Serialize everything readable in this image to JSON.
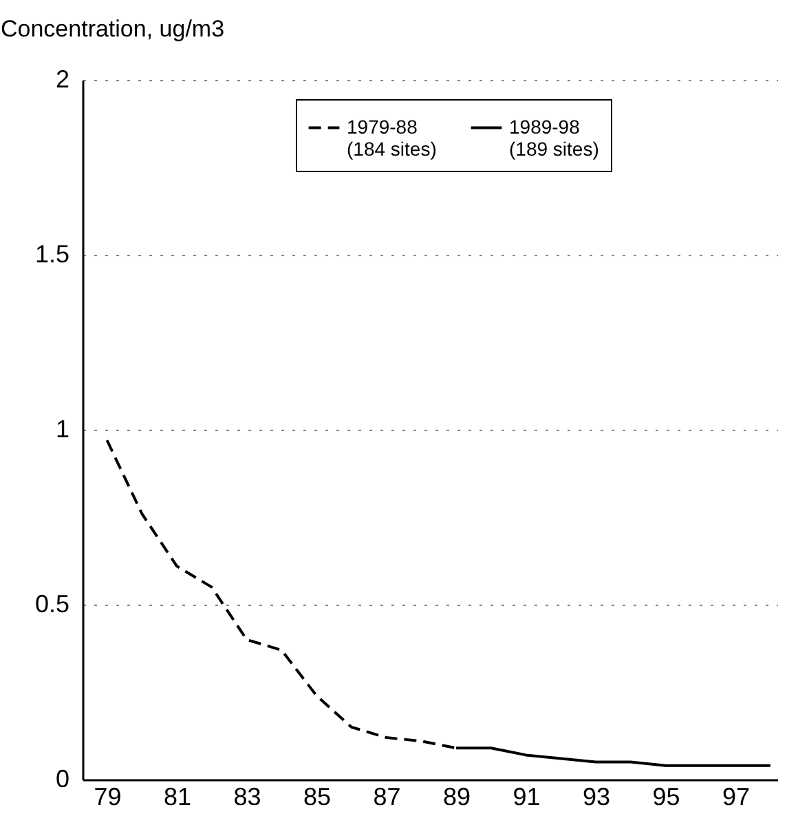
{
  "chart_data": {
    "type": "line",
    "ylabel": "Concentration, ug/m3",
    "series": [
      {
        "name": "1979-88\n(184 sites)",
        "color": "#000000",
        "line_style": "dashed",
        "x": [
          79,
          80,
          81,
          82,
          83,
          84,
          85,
          86,
          87,
          88,
          89
        ],
        "values": [
          0.97,
          0.76,
          0.61,
          0.55,
          0.4,
          0.37,
          0.24,
          0.15,
          0.12,
          0.11,
          0.09
        ]
      },
      {
        "name": "1989-98\n(189 sites)",
        "color": "#000000",
        "line_style": "solid",
        "x": [
          89,
          90,
          91,
          92,
          93,
          94,
          95,
          96,
          97,
          98
        ],
        "values": [
          0.09,
          0.09,
          0.07,
          0.06,
          0.05,
          0.05,
          0.04,
          0.04,
          0.04,
          0.04
        ]
      }
    ],
    "xlim": [
      78.3,
      98.2
    ],
    "xticks": [
      79,
      81,
      83,
      85,
      87,
      89,
      91,
      93,
      95,
      97
    ],
    "ylim": [
      0,
      2
    ],
    "yticks": [
      0,
      0.5,
      1,
      1.5,
      2
    ],
    "grid": "y",
    "legend": "top",
    "marker": "none"
  }
}
